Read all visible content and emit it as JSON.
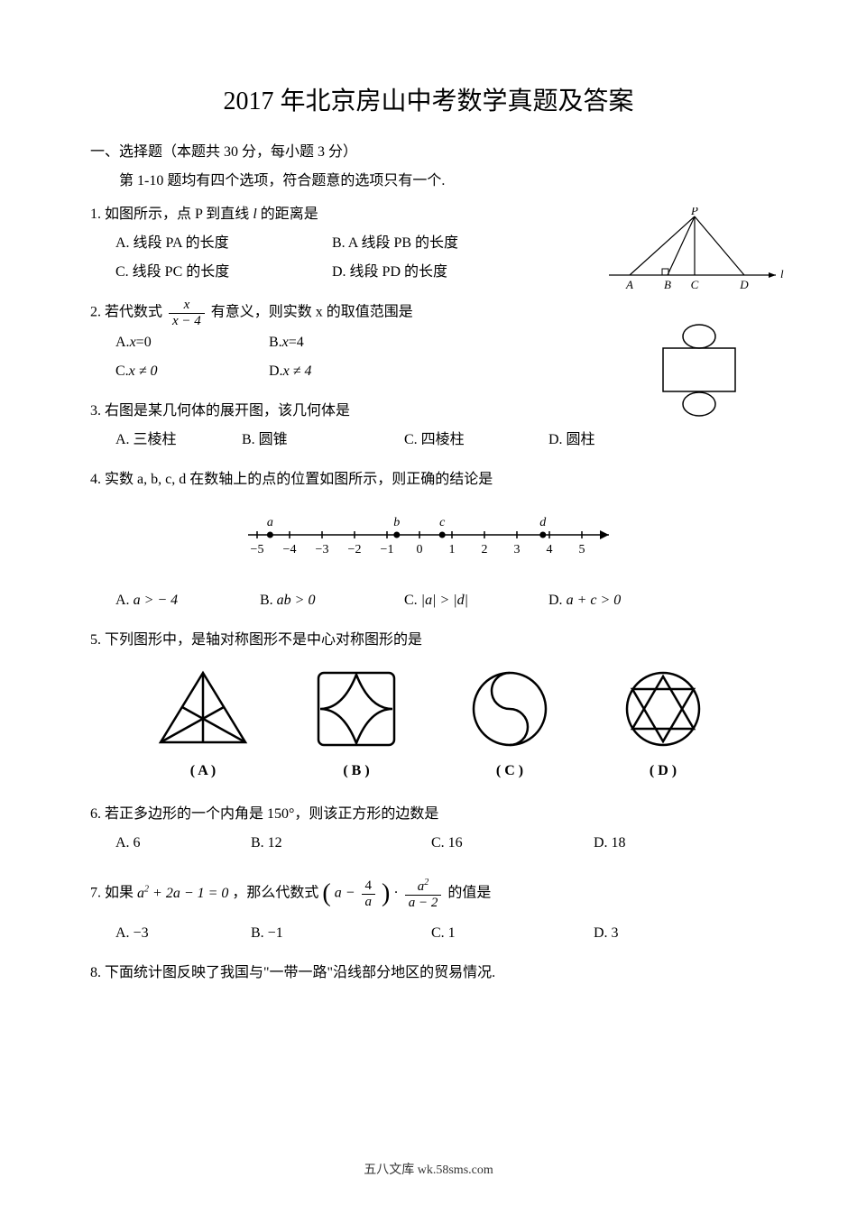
{
  "title": "2017 年北京房山中考数学真题及答案",
  "section1": {
    "heading": "一、选择题（本题共 30 分，每小题 3 分）",
    "sub": "第 1-10 题均有四个选项，符合题意的选项只有一个."
  },
  "q1": {
    "stem_pre": "1. 如图所示，点 P 到直线",
    "stem_post": "的距离是",
    "A": "A. 线段 PA 的长度",
    "B": "B.  A 线段 PB 的长度",
    "C": "C. 线段 PC 的长度",
    "D": "D. 线段 PD 的长度",
    "fig": {
      "labels": {
        "P": "P",
        "A": "A",
        "B": "B",
        "C": "C",
        "D": "D",
        "l": "l"
      },
      "stroke": "#000000"
    }
  },
  "q2": {
    "stem_pre": "2. 若代数式",
    "stem_post": "有意义，则实数 x 的取值范围是",
    "frac_n": "x",
    "frac_d": "x − 4",
    "A_pre": "A.  ",
    "A_expr": "x",
    "A_post": " =0",
    "B_pre": "B.  ",
    "B_expr": "x",
    "B_post": " =4",
    "C_pre": "C.  ",
    "C_expr": "x ≠ 0",
    "D_pre": "D.  ",
    "D_expr": "x ≠ 4"
  },
  "q3": {
    "stem": "3. 右图是某几何体的展开图，该几何体是",
    "A": "A. 三棱柱",
    "B": "B. 圆锥",
    "C": "C. 四棱柱",
    "D": "D. 圆柱",
    "fig": {
      "stroke": "#000000"
    }
  },
  "q4": {
    "stem": "4. 实数 a, b, c, d 在数轴上的点的位置如图所示，则正确的结论是",
    "A": "a > − 4",
    "B": "ab > 0",
    "C": "|a| > |d|",
    "D": "a + c > 0",
    "numline": {
      "ticks": [
        "−5",
        "−4",
        "−3",
        "−2",
        "−1",
        "0",
        "1",
        "2",
        "3",
        "4",
        "5"
      ],
      "points": {
        "a": -4.6,
        "b": -0.7,
        "c": 0.7,
        "d": 3.8
      },
      "stroke": "#000000"
    }
  },
  "q5": {
    "stem": "5. 下列图形中，是轴对称图形不是中心对称图形的是",
    "labels": [
      "( A )",
      "( B )",
      "( C )",
      "( D )"
    ],
    "stroke": "#000000"
  },
  "q6": {
    "stem": "6. 若正多边形的一个内角是 150°，则该正方形的边数是",
    "A": "A. 6",
    "B": "B.  12",
    "C": "C.  16",
    "D": "D. 18"
  },
  "q7": {
    "stem_pre": "7. 如果",
    "cond": "a",
    "cond_post": " + 2a − 1 = 0",
    "stem_mid": "，那么代数式",
    "expr_left_pre": "a − ",
    "expr_left_frac_n": "4",
    "expr_left_frac_d": "a",
    "expr_mid": " · ",
    "expr_right_frac_n": "a",
    "expr_right_frac_d": "a − 2",
    "stem_post": " 的值是",
    "A": "A. −3",
    "B": "B.  −1",
    "C": "C.  1",
    "D": "D. 3"
  },
  "q8": {
    "stem": "8. 下面统计图反映了我国与\"一带一路\"沿线部分地区的贸易情况."
  },
  "footer": "五八文库 wk.58sms.com"
}
